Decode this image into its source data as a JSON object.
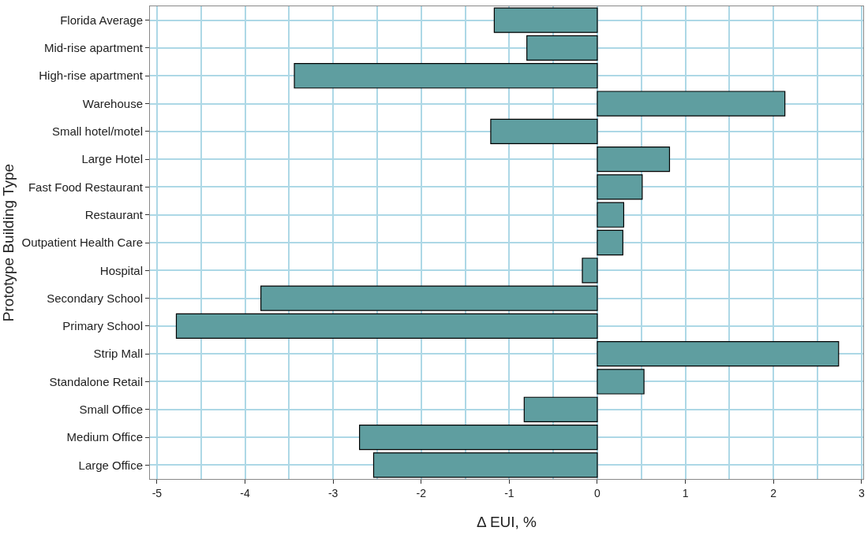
{
  "chart_data": {
    "type": "bar",
    "orientation": "horizontal",
    "xlabel": "Δ EUI, %",
    "ylabel": "Prototype Building Type",
    "categories": [
      "Florida Average",
      "Mid-rise apartment",
      "High-rise apartment",
      "Warehouse",
      "Small hotel/motel",
      "Large Hotel",
      "Fast Food Restaurant",
      "Restaurant",
      "Outpatient Health Care",
      "Hospital",
      "Secondary School",
      "Primary School",
      "Strip Mall",
      "Standalone Retail",
      "Small Office",
      "Medium Office",
      "Large Office"
    ],
    "values": [
      -1.17,
      -0.8,
      -3.44,
      2.13,
      -1.21,
      0.82,
      0.51,
      0.3,
      0.29,
      -0.17,
      -3.82,
      -4.78,
      2.74,
      0.53,
      -0.83,
      -2.7,
      -2.54
    ],
    "color": "#5f9ea0",
    "xlim": [
      -5.08,
      3.02
    ],
    "xticks": [
      -5,
      -4,
      -3,
      -2,
      -1,
      0,
      1,
      2,
      3
    ],
    "grid": true
  }
}
